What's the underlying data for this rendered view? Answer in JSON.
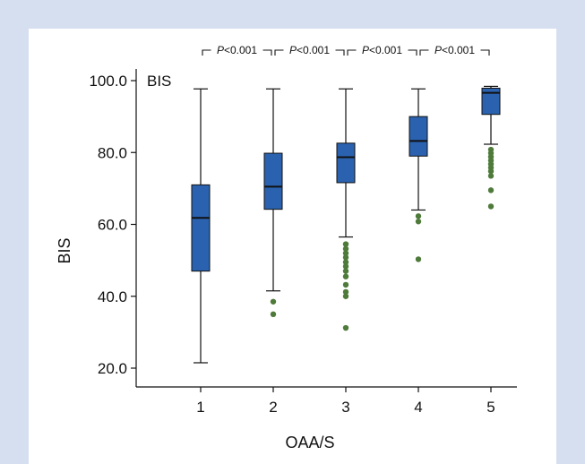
{
  "chart_data": {
    "type": "boxplot",
    "inset_label": "BIS",
    "xlabel": "OAA/S",
    "ylabel": "BIS",
    "ylim": [
      15,
      102
    ],
    "yticks": [
      20.0,
      40.0,
      60.0,
      80.0,
      100.0
    ],
    "ytick_labels": [
      "20.0",
      "40.0",
      "60.0",
      "80.0",
      "100.0"
    ],
    "categories": [
      "1",
      "2",
      "3",
      "4",
      "5"
    ],
    "box_color": "#2a62b0",
    "outlier_color": "#4e7a3a",
    "boxes": [
      {
        "category": "1",
        "whisker_low": 21.5,
        "q1": 47.0,
        "median": 61.8,
        "q3": 71.0,
        "whisker_high": 97.7,
        "outliers": []
      },
      {
        "category": "2",
        "whisker_low": 41.5,
        "q1": 64.2,
        "median": 70.5,
        "q3": 79.8,
        "whisker_high": 97.7,
        "outliers": [
          38.5,
          35.0
        ]
      },
      {
        "category": "3",
        "whisker_low": 56.5,
        "q1": 71.6,
        "median": 78.7,
        "q3": 82.6,
        "whisker_high": 97.7,
        "outliers": [
          54.5,
          53.2,
          52.0,
          50.8,
          49.5,
          48.3,
          47.0,
          45.5,
          43.2,
          41.2,
          40.0,
          31.2
        ]
      },
      {
        "category": "4",
        "whisker_low": 64.0,
        "q1": 79.0,
        "median": 83.2,
        "q3": 90.0,
        "whisker_high": 97.7,
        "outliers": [
          62.3,
          60.8,
          50.3
        ]
      },
      {
        "category": "5",
        "whisker_low": 82.3,
        "q1": 90.6,
        "median": 96.6,
        "q3": 97.9,
        "whisker_high": 98.4,
        "outliers": [
          80.8,
          79.8,
          78.8,
          77.8,
          76.8,
          75.8,
          74.8,
          73.5,
          69.5,
          65.0
        ]
      }
    ],
    "comparisons": [
      {
        "from": "1",
        "to": "2",
        "label_italic": "P",
        "label_rest": "<0.001"
      },
      {
        "from": "2",
        "to": "3",
        "label_italic": "P",
        "label_rest": "<0.001"
      },
      {
        "from": "3",
        "to": "4",
        "label_italic": "P",
        "label_rest": "<0.001"
      },
      {
        "from": "4",
        "to": "5",
        "label_italic": "P",
        "label_rest": "<0.001"
      }
    ]
  }
}
